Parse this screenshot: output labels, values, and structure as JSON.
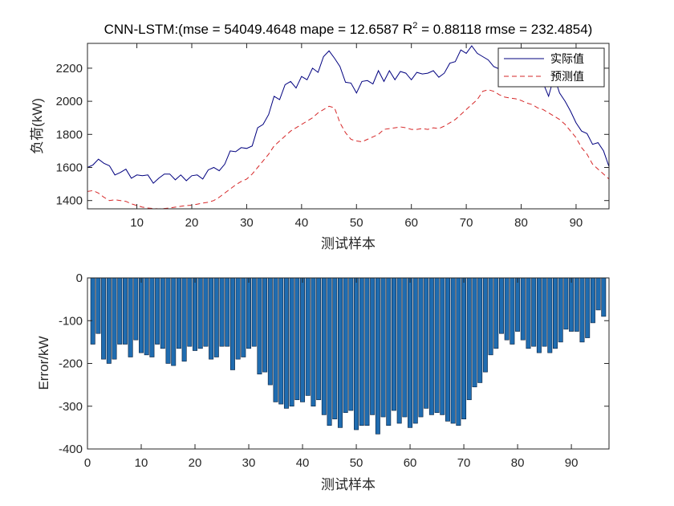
{
  "chart_data": [
    {
      "type": "line",
      "title": "CNN-LSTM:(mse = 54049.4648 mape = 12.6587  R",
      "title_sup": "2",
      "title_rest": " = 0.88118 rmse = 232.4854)",
      "xlabel": "测试样本",
      "ylabel": "负荷(kW)",
      "xlim": [
        1,
        96
      ],
      "ylim": [
        1350,
        2350
      ],
      "xticks": [
        10,
        20,
        30,
        40,
        50,
        60,
        70,
        80,
        90
      ],
      "yticks": [
        1400,
        1600,
        1800,
        2000,
        2200
      ],
      "legend_position": "top-right",
      "series": [
        {
          "name": "实际值",
          "color": "#00007f",
          "style": "solid",
          "x": [
            1,
            2,
            3,
            4,
            5,
            6,
            7,
            8,
            9,
            10,
            11,
            12,
            13,
            14,
            15,
            16,
            17,
            18,
            19,
            20,
            21,
            22,
            23,
            24,
            25,
            26,
            27,
            28,
            29,
            30,
            31,
            32,
            33,
            34,
            35,
            36,
            37,
            38,
            39,
            40,
            41,
            42,
            43,
            44,
            45,
            46,
            47,
            48,
            49,
            50,
            51,
            52,
            53,
            54,
            55,
            56,
            57,
            58,
            59,
            60,
            61,
            62,
            63,
            64,
            65,
            66,
            67,
            68,
            69,
            70,
            71,
            72,
            73,
            74,
            75,
            76,
            77,
            78,
            79,
            80,
            81,
            82,
            83,
            84,
            85,
            86,
            87,
            88,
            89,
            90,
            91,
            92,
            93,
            94,
            95,
            96
          ],
          "values": [
            1600,
            1615,
            1650,
            1625,
            1610,
            1555,
            1570,
            1590,
            1535,
            1555,
            1550,
            1555,
            1505,
            1535,
            1560,
            1560,
            1525,
            1555,
            1520,
            1550,
            1555,
            1530,
            1585,
            1600,
            1580,
            1620,
            1700,
            1695,
            1720,
            1715,
            1730,
            1840,
            1860,
            1920,
            2030,
            2010,
            2100,
            2120,
            2080,
            2150,
            2130,
            2200,
            2175,
            2270,
            2305,
            2260,
            2210,
            2115,
            2110,
            2050,
            2120,
            2125,
            2105,
            2185,
            2120,
            2185,
            2130,
            2180,
            2170,
            2130,
            2175,
            2165,
            2170,
            2185,
            2145,
            2170,
            2230,
            2240,
            2310,
            2290,
            2335,
            2290,
            2270,
            2250,
            2210,
            2195,
            2130,
            2160,
            2180,
            2140,
            2120,
            2170,
            2090,
            2110,
            2030,
            2150,
            2050,
            2000,
            1940,
            1870,
            1820,
            1805,
            1740,
            1750,
            1700,
            1605
          ]
        },
        {
          "name": "预测值",
          "color": "#d62728",
          "style": "dashed",
          "x": [
            1,
            2,
            3,
            4,
            5,
            6,
            7,
            8,
            9,
            10,
            11,
            12,
            13,
            14,
            15,
            16,
            17,
            18,
            19,
            20,
            21,
            22,
            23,
            24,
            25,
            26,
            27,
            28,
            29,
            30,
            31,
            32,
            33,
            34,
            35,
            36,
            37,
            38,
            39,
            40,
            41,
            42,
            43,
            44,
            45,
            46,
            47,
            48,
            49,
            50,
            51,
            52,
            53,
            54,
            55,
            56,
            57,
            58,
            59,
            60,
            61,
            62,
            63,
            64,
            65,
            66,
            67,
            68,
            69,
            70,
            71,
            72,
            73,
            74,
            75,
            76,
            77,
            78,
            79,
            80,
            81,
            82,
            83,
            84,
            85,
            86,
            87,
            88,
            89,
            90,
            91,
            92,
            93,
            94,
            95,
            96
          ],
          "values": [
            1455,
            1460,
            1445,
            1420,
            1400,
            1405,
            1400,
            1395,
            1380,
            1370,
            1360,
            1355,
            1352,
            1350,
            1352,
            1355,
            1360,
            1365,
            1370,
            1372,
            1378,
            1385,
            1390,
            1400,
            1420,
            1445,
            1470,
            1495,
            1515,
            1530,
            1560,
            1600,
            1640,
            1680,
            1730,
            1760,
            1790,
            1820,
            1840,
            1860,
            1880,
            1900,
            1930,
            1950,
            1970,
            1960,
            1870,
            1810,
            1770,
            1760,
            1755,
            1770,
            1785,
            1800,
            1830,
            1835,
            1840,
            1845,
            1840,
            1830,
            1830,
            1835,
            1830,
            1840,
            1835,
            1850,
            1870,
            1890,
            1920,
            1950,
            1980,
            2010,
            2060,
            2070,
            2060,
            2040,
            2025,
            2020,
            2015,
            2005,
            1990,
            1980,
            1960,
            1950,
            1930,
            1910,
            1890,
            1860,
            1820,
            1780,
            1720,
            1680,
            1620,
            1590,
            1560,
            1530
          ]
        }
      ]
    },
    {
      "type": "bar",
      "xlabel": "测试样本",
      "ylabel": "Error/kW",
      "xlim": [
        0,
        97
      ],
      "ylim": [
        -400,
        0
      ],
      "xticks": [
        0,
        10,
        20,
        30,
        40,
        50,
        60,
        70,
        80,
        90
      ],
      "yticks": [
        -400,
        -300,
        -200,
        -100,
        0
      ],
      "bar_color": "#1f6cb0",
      "x": [
        1,
        2,
        3,
        4,
        5,
        6,
        7,
        8,
        9,
        10,
        11,
        12,
        13,
        14,
        15,
        16,
        17,
        18,
        19,
        20,
        21,
        22,
        23,
        24,
        25,
        26,
        27,
        28,
        29,
        30,
        31,
        32,
        33,
        34,
        35,
        36,
        37,
        38,
        39,
        40,
        41,
        42,
        43,
        44,
        45,
        46,
        47,
        48,
        49,
        50,
        51,
        52,
        53,
        54,
        55,
        56,
        57,
        58,
        59,
        60,
        61,
        62,
        63,
        64,
        65,
        66,
        67,
        68,
        69,
        70,
        71,
        72,
        73,
        74,
        75,
        76,
        77,
        78,
        79,
        80,
        81,
        82,
        83,
        84,
        85,
        86,
        87,
        88,
        89,
        90,
        91,
        92,
        93,
        94,
        95,
        96
      ],
      "values": [
        -155,
        -130,
        -190,
        -200,
        -190,
        -155,
        -155,
        -185,
        -145,
        -175,
        -180,
        -185,
        -155,
        -165,
        -200,
        -205,
        -165,
        -195,
        -160,
        -170,
        -165,
        -160,
        -190,
        -185,
        -160,
        -160,
        -215,
        -190,
        -185,
        -165,
        -160,
        -225,
        -220,
        -250,
        -290,
        -295,
        -305,
        -300,
        -285,
        -290,
        -275,
        -300,
        -285,
        -320,
        -345,
        -330,
        -350,
        -315,
        -310,
        -355,
        -345,
        -345,
        -320,
        -365,
        -325,
        -345,
        -310,
        -340,
        -325,
        -350,
        -340,
        -325,
        -305,
        -320,
        -315,
        -320,
        -335,
        -340,
        -345,
        -330,
        -285,
        -255,
        -245,
        -220,
        -180,
        -165,
        -130,
        -145,
        -155,
        -125,
        -145,
        -165,
        -160,
        -175,
        -160,
        -175,
        -165,
        -150,
        -120,
        -125,
        -125,
        -150,
        -140,
        -105,
        -75,
        -90
      ]
    }
  ]
}
